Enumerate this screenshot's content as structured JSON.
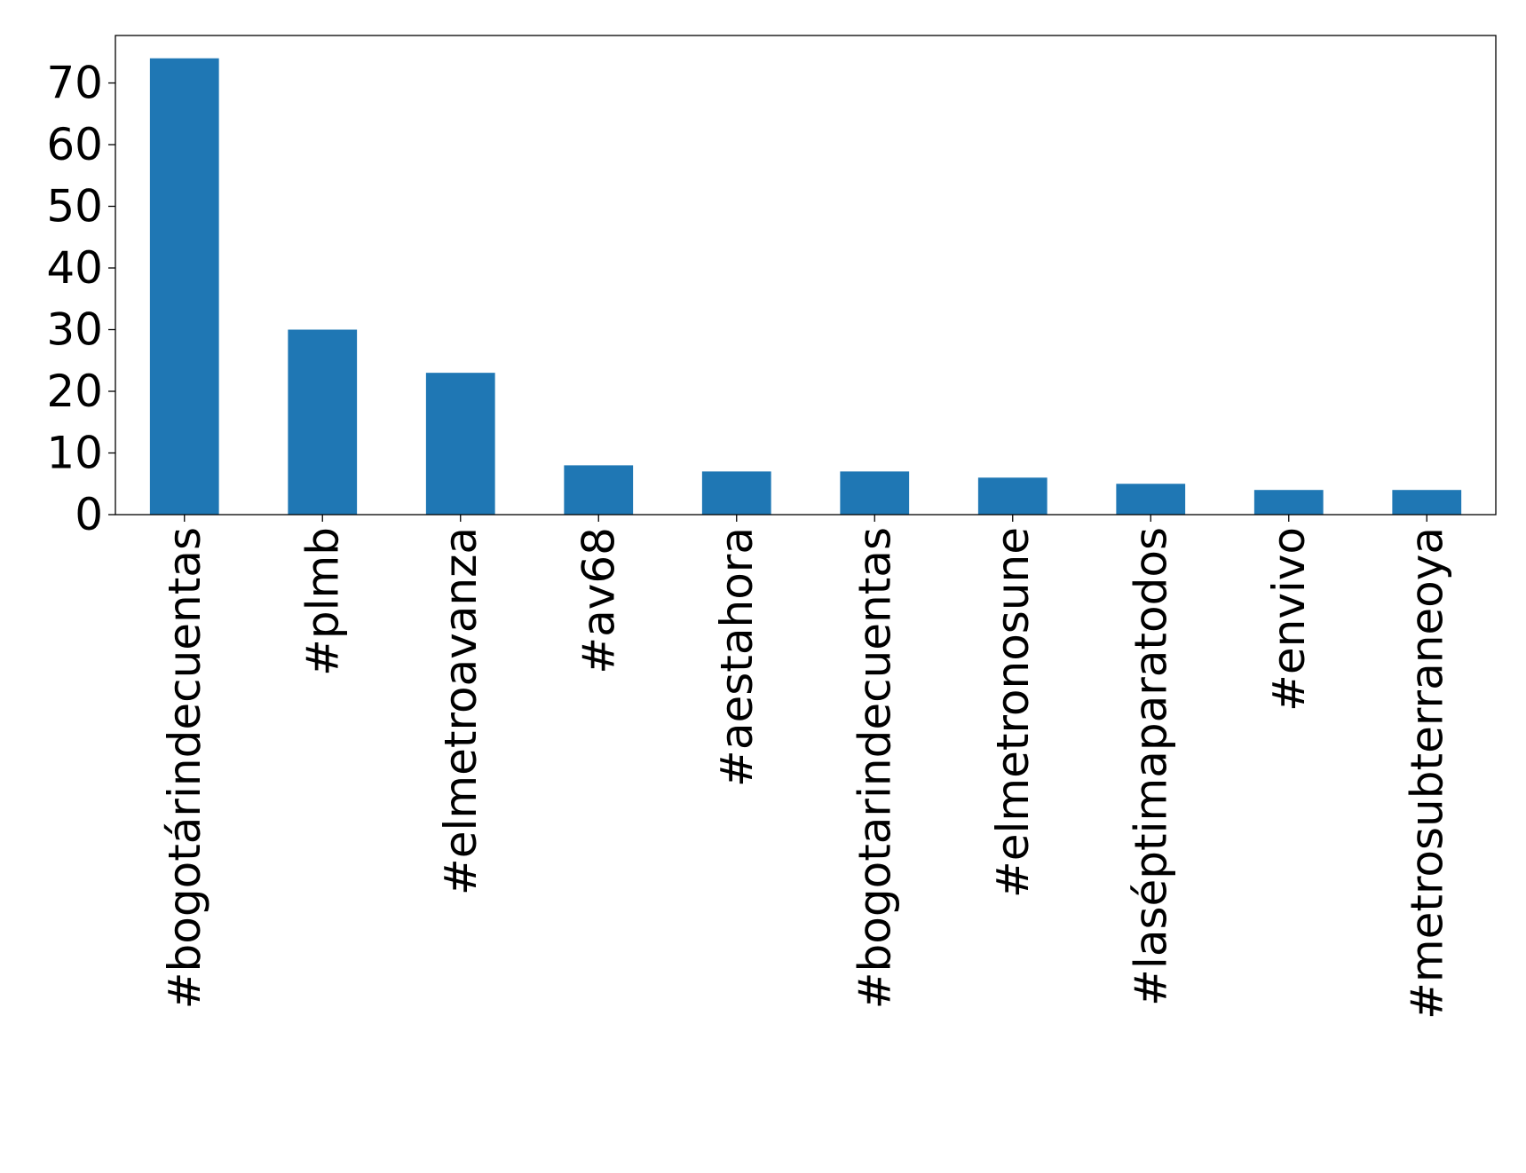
{
  "chart_data": {
    "type": "bar",
    "title": "",
    "xlabel": "",
    "ylabel": "",
    "categories": [
      "#bogotárindecuentas",
      "#plmb",
      "#elmetroavanza",
      "#av68",
      "#aestahora",
      "#bogotarindecuentas",
      "#elmetronosune",
      "#laséptimaparatodos",
      "#envivo",
      "#metrosubterraneoya"
    ],
    "values": [
      74,
      30,
      23,
      8,
      7,
      7,
      6,
      5,
      4,
      4
    ],
    "ylim": [
      0,
      77.7
    ],
    "yticks": [
      "0",
      "10",
      "20",
      "30",
      "40",
      "50",
      "60",
      "70"
    ],
    "grid": false,
    "legend": "none",
    "bar_color": "#1f77b4"
  }
}
